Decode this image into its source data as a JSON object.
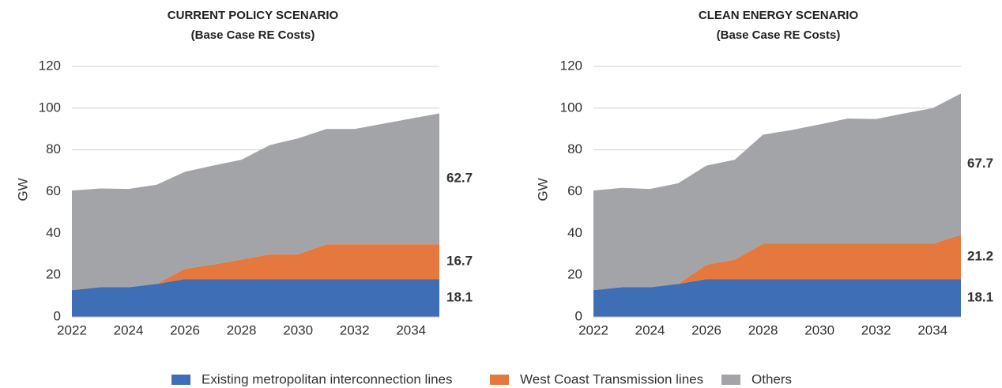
{
  "chart_data": [
    {
      "type": "area",
      "stacked": true,
      "title": "CURRENT POLICY SCENARIO",
      "subtitle": "(Base Case RE Costs)",
      "y_label": "GW",
      "x": [
        2022,
        2023,
        2024,
        2025,
        2026,
        2027,
        2028,
        2029,
        2030,
        2031,
        2032,
        2033,
        2034,
        2035
      ],
      "xlim": [
        2022,
        2035
      ],
      "xticks": [
        2022,
        2024,
        2026,
        2028,
        2030,
        2032,
        2034
      ],
      "ylim": [
        0,
        120
      ],
      "yticks": [
        0,
        20,
        40,
        60,
        80,
        100,
        120
      ],
      "grid": true,
      "series": [
        {
          "name": "Existing metropolitan interconnection lines",
          "color": "#3e6eb5",
          "values": [
            12.8,
            14.2,
            14.2,
            15.8,
            18.1,
            18.1,
            18.1,
            18.1,
            18.1,
            18.1,
            18.1,
            18.1,
            18.1,
            18.1
          ]
        },
        {
          "name": "West Coast Transmission lines",
          "color": "#e5783f",
          "values": [
            0,
            0,
            0,
            0,
            5,
            7,
            9.4,
            11.9,
            11.9,
            16.7,
            16.7,
            16.7,
            16.7,
            16.7
          ]
        },
        {
          "name": "Others",
          "color": "#a3a4a8",
          "values": [
            47.7,
            47.3,
            47.1,
            47.5,
            46.4,
            47.4,
            47.8,
            52.3,
            55.5,
            55.2,
            55.2,
            57.7,
            60.2,
            62.7
          ]
        }
      ]
    },
    {
      "type": "area",
      "stacked": true,
      "title": "CLEAN ENERGY SCENARIO",
      "subtitle": "(Base Case RE Costs)",
      "y_label": "GW",
      "x": [
        2022,
        2023,
        2024,
        2025,
        2026,
        2027,
        2028,
        2029,
        2030,
        2031,
        2032,
        2033,
        2034,
        2035
      ],
      "xlim": [
        2022,
        2035
      ],
      "xticks": [
        2022,
        2024,
        2026,
        2028,
        2030,
        2032,
        2034
      ],
      "ylim": [
        0,
        120
      ],
      "yticks": [
        0,
        20,
        40,
        60,
        80,
        100,
        120
      ],
      "grid": true,
      "series": [
        {
          "color": "#3e6eb5",
          "values": [
            12.8,
            14.2,
            14.2,
            15.8,
            18.1,
            18.1,
            18.1,
            18.1,
            18.1,
            18.1,
            18.1,
            18.1,
            18.1,
            18.1
          ]
        },
        {
          "color": "#e5783f",
          "values": [
            0,
            0,
            0,
            0,
            6.9,
            9.4,
            16.9,
            16.9,
            16.9,
            16.9,
            16.9,
            16.9,
            16.9,
            21.2
          ]
        },
        {
          "color": "#a3a4a8",
          "values": [
            47.7,
            47.6,
            47.1,
            48.2,
            47.5,
            47.8,
            52.3,
            54.5,
            57.2,
            60,
            59.8,
            62.5,
            65,
            67.7
          ]
        }
      ]
    }
  ]
}
